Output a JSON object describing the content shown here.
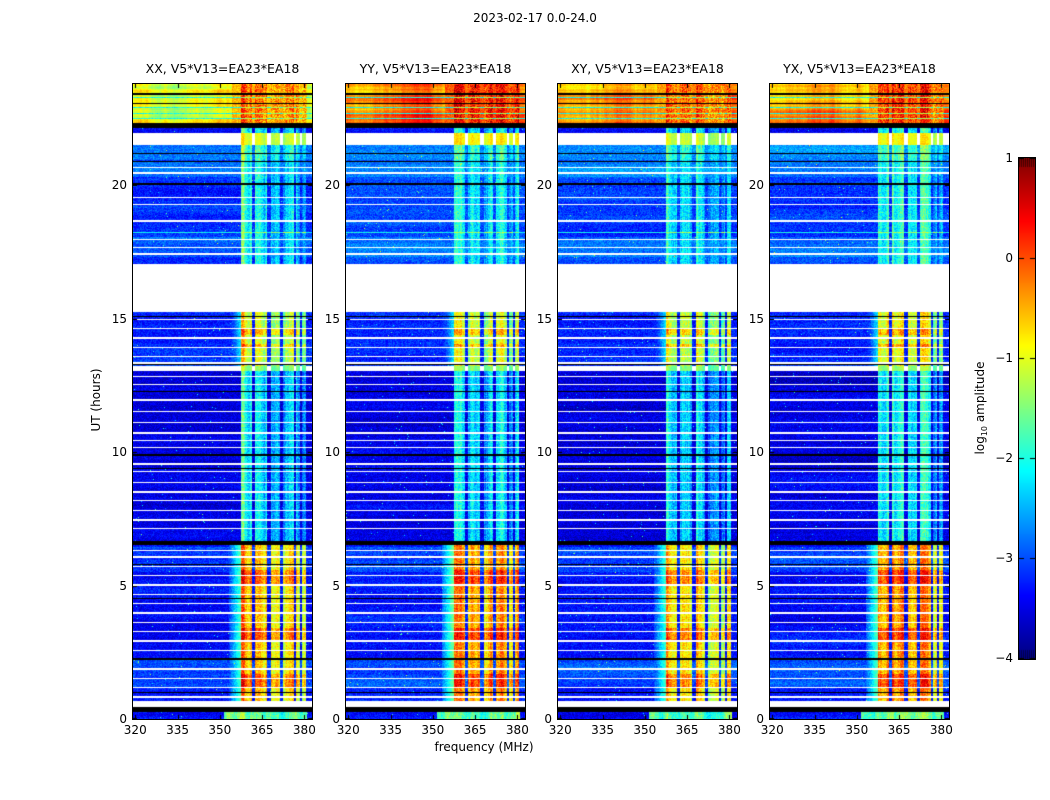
{
  "chart_data": {
    "type": "heatmap",
    "title": "2023-02-17 0.0-24.0",
    "panels": [
      {
        "title": "XX, V5*V13=EA23*EA18",
        "seed": 101,
        "top_band_level": -0.72,
        "rfi_bright_level": -0.55,
        "bg_offset": 0.0
      },
      {
        "title": "YY, V5*V13=EA23*EA18",
        "seed": 202,
        "top_band_level": -0.2,
        "rfi_bright_level": -0.3,
        "bg_offset": 0.07
      },
      {
        "title": "XY, V5*V13=EA23*EA18",
        "seed": 303,
        "top_band_level": -0.55,
        "rfi_bright_level": -0.58,
        "bg_offset": 0.0
      },
      {
        "title": "YX, V5*V13=EA23*EA18",
        "seed": 404,
        "top_band_level": -0.48,
        "rfi_bright_level": -0.45,
        "bg_offset": 0.03
      }
    ],
    "xaxis": {
      "label": "frequency (MHz)",
      "ticks": [
        320,
        335,
        350,
        365,
        380
      ],
      "tick_labels": [
        "320",
        "335",
        "350",
        "365",
        "380"
      ],
      "range": [
        319.2,
        382.7
      ]
    },
    "yaxis": {
      "label": "UT (hours)",
      "ticks": [
        0,
        5,
        10,
        15,
        20
      ],
      "tick_labels": [
        "0",
        "5",
        "10",
        "15",
        "20"
      ],
      "range": [
        0,
        23.8
      ]
    },
    "colorbar": {
      "label_prefix": "log",
      "label_sub": "10",
      "label_suffix": " amplitude",
      "ticks": [
        1,
        0,
        -1,
        -2,
        -3,
        -4
      ],
      "tick_labels": [
        "1",
        "0",
        "−1",
        "−2",
        "−3",
        "−4"
      ],
      "range": [
        -4,
        1
      ],
      "colormap": "jet"
    },
    "time_bands": [
      {
        "ut": [
          22.35,
          23.8
        ],
        "kind": "bright"
      },
      {
        "ut": [
          21.95,
          22.15
        ],
        "bg": -3.4,
        "rfi": -2.1
      },
      {
        "ut": [
          20.95,
          21.5
        ],
        "bg": -2.8,
        "rfi": -1.75
      },
      {
        "ut": [
          17.05,
          20.95
        ],
        "bg": -3.1,
        "rfi": -2.05
      },
      {
        "ut": [
          13.22,
          15.25
        ],
        "bg": -3.2,
        "rfi": -1.0,
        "rfi_ramp": true
      },
      {
        "ut": [
          6.68,
          13.05
        ],
        "bg": -3.55,
        "rfi": -2.15
      },
      {
        "ut": [
          0.68,
          6.52
        ],
        "bg": -3.35,
        "rfi": "bright",
        "rfi_ramp": true
      },
      {
        "ut": [
          0.0,
          0.26
        ],
        "bg": -3.4,
        "rfi": -1.65,
        "rfi_wide": true
      }
    ],
    "gaps": [
      {
        "ut": [
          15.25,
          17.05
        ],
        "rfi_visible": false
      },
      {
        "ut": [
          21.5,
          21.95
        ],
        "rfi_visible": true,
        "rel": true
      },
      {
        "ut": [
          13.05,
          13.22
        ],
        "rfi_visible": true,
        "rfi_level": -1.4
      },
      {
        "ut": [
          0.46,
          0.68
        ],
        "rfi_visible": false
      }
    ],
    "black_bands": [
      [
        0.26,
        0.46
      ],
      [
        22.15,
        22.35
      ],
      [
        6.52,
        6.68
      ]
    ],
    "bg_light_rows": [
      [
        1.2,
        2.25
      ],
      [
        5.5,
        6.45
      ],
      [
        17.3,
        18.05
      ],
      [
        20.3,
        20.9
      ]
    ],
    "red_rows": [
      [
        5.05,
        5.6
      ],
      [
        2.95,
        3.4
      ],
      [
        1.2,
        1.7
      ],
      [
        14.4,
        14.65
      ],
      [
        13.9,
        14.05
      ]
    ],
    "rfi_subbands": [
      [
        357.6,
        361.3,
        0
      ],
      [
        362.4,
        366.9,
        -0.05
      ],
      [
        368.0,
        371.3,
        -0.2
      ],
      [
        372.3,
        376.2,
        -0.1
      ],
      [
        377.1,
        378.3,
        -0.45
      ],
      [
        379.1,
        380.7,
        -0.5
      ]
    ],
    "white_lines_ut": [
      0.85,
      1.2,
      1.55,
      1.9,
      2.25,
      2.6,
      2.95,
      3.3,
      3.65,
      4.0,
      4.35,
      4.7,
      5.05,
      5.4,
      5.75,
      6.1,
      6.35,
      7.15,
      7.5,
      7.85,
      8.2,
      8.55,
      8.9,
      9.3,
      9.6,
      10.2,
      10.45,
      10.75,
      11.15,
      11.55,
      12.0,
      12.55,
      12.85,
      13.38,
      13.6,
      13.95,
      14.3,
      14.65,
      15.0,
      17.45,
      17.7,
      17.98,
      18.7,
      19.3,
      19.55,
      20.5,
      20.7
    ],
    "black_lines_ut": [
      23.48,
      23.07,
      21.2,
      20.92,
      20.08,
      15.12,
      13.3,
      12.3,
      9.95,
      9.42,
      5.8,
      4.55,
      2.3,
      1.0
    ],
    "cyan_lines_ut": [
      23.32,
      22.95,
      22.72,
      22.52,
      18.25,
      4.53
    ]
  }
}
